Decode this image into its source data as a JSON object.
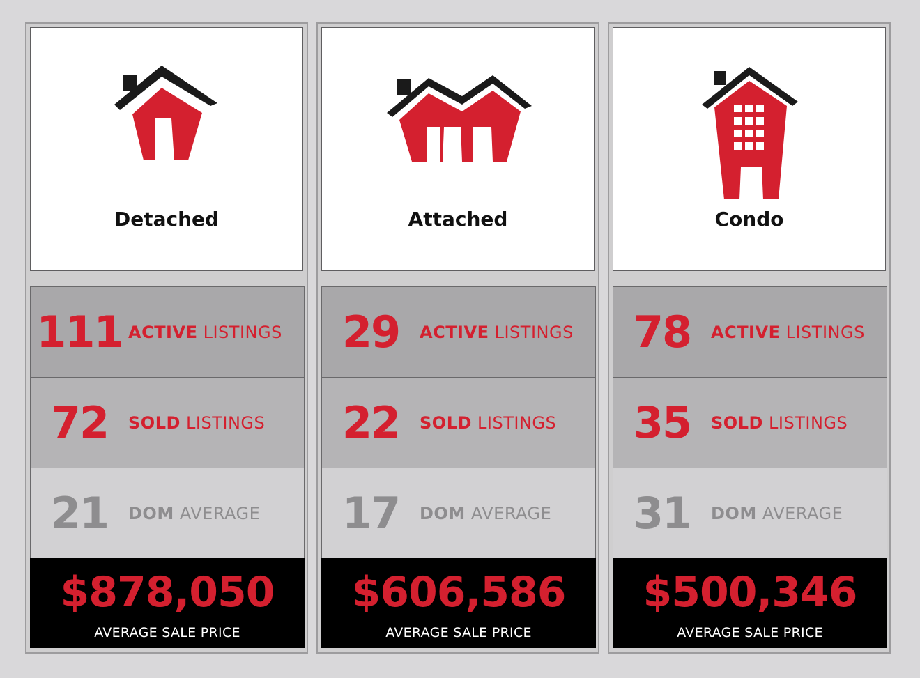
{
  "colors": {
    "accent": "#d4202f",
    "muted": "#8e8d8f",
    "dark": "#1a1a1a"
  },
  "cards": [
    {
      "type": "Detached",
      "icon": "detached-house-icon",
      "active": {
        "value": "111",
        "bold": "ACTIVE",
        "text": " LISTINGS"
      },
      "sold": {
        "value": "72",
        "bold": "SOLD",
        "text": " LISTINGS"
      },
      "dom": {
        "value": "21",
        "bold": "DOM",
        "text": " AVERAGE"
      },
      "price": {
        "value": "$878,050",
        "label": "AVERAGE SALE PRICE"
      }
    },
    {
      "type": "Attached",
      "icon": "attached-house-icon",
      "active": {
        "value": "29",
        "bold": "ACTIVE",
        "text": " LISTINGS"
      },
      "sold": {
        "value": "22",
        "bold": "SOLD",
        "text": " LISTINGS"
      },
      "dom": {
        "value": "17",
        "bold": "DOM",
        "text": " AVERAGE"
      },
      "price": {
        "value": "$606,586",
        "label": "AVERAGE SALE PRICE"
      }
    },
    {
      "type": "Condo",
      "icon": "condo-building-icon",
      "active": {
        "value": "78",
        "bold": "ACTIVE",
        "text": " LISTINGS"
      },
      "sold": {
        "value": "35",
        "bold": "SOLD",
        "text": " LISTINGS"
      },
      "dom": {
        "value": "31",
        "bold": "DOM",
        "text": " AVERAGE"
      },
      "price": {
        "value": "$500,346",
        "label": "AVERAGE SALE PRICE"
      }
    }
  ]
}
